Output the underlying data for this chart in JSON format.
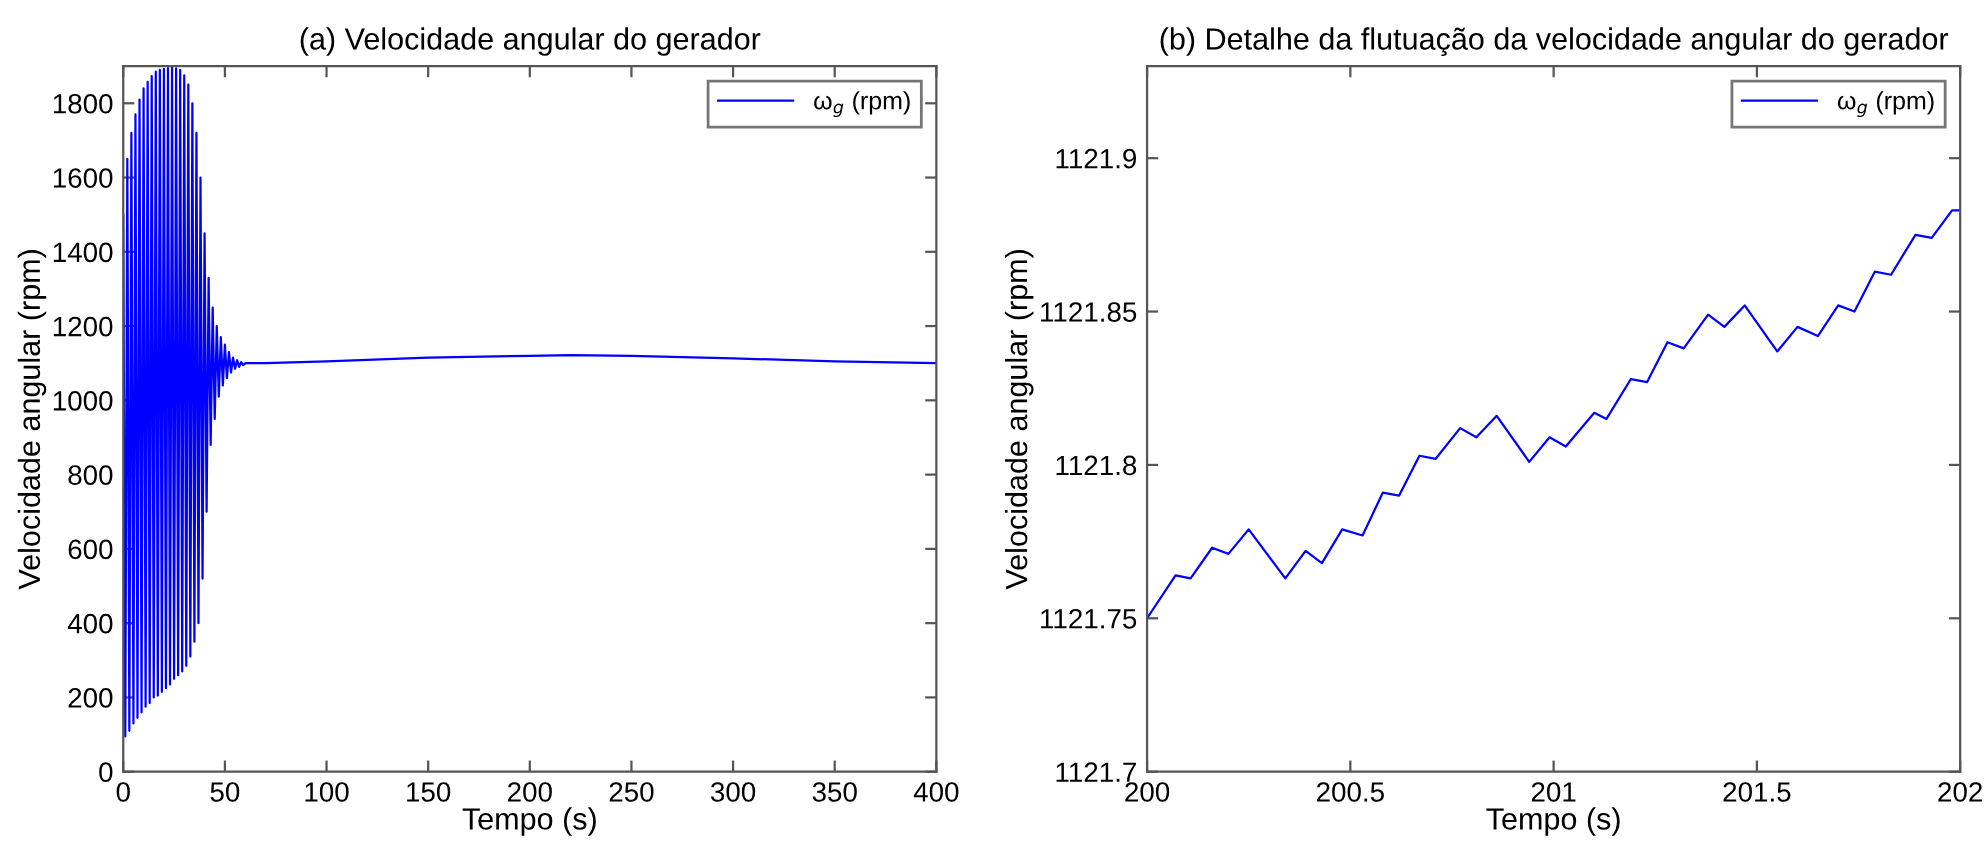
{
  "chart_data": [
    {
      "type": "line",
      "title": "(a) Velocidade angular do gerador",
      "xlabel": "Tempo (s)",
      "ylabel": "Velocidade angular (rpm)",
      "legend": "top right",
      "grid": false,
      "xlim": [
        0,
        400
      ],
      "xticks": [
        0,
        50,
        100,
        150,
        200,
        250,
        300,
        350,
        400
      ],
      "ylim": [
        0,
        1900
      ],
      "yticks": [
        0,
        200,
        400,
        600,
        800,
        1000,
        1200,
        1400,
        1600,
        1800
      ],
      "series": [
        {
          "name": "ω$_{g}$ (rpm)",
          "color": "#0000ff",
          "x": [
            0,
            1,
            2,
            3,
            4,
            5,
            6,
            7,
            8,
            9,
            10,
            11,
            12,
            13,
            14,
            15,
            16,
            17,
            18,
            19,
            20,
            21,
            22,
            23,
            24,
            25,
            26,
            27,
            28,
            29,
            30,
            31,
            32,
            33,
            34,
            35,
            36,
            37,
            38,
            39,
            40,
            41,
            42,
            43,
            44,
            45,
            46,
            47,
            48,
            49,
            50,
            51,
            52,
            53,
            54,
            55,
            56,
            57,
            58,
            59,
            60,
            70,
            100,
            150,
            200,
            220,
            250,
            300,
            350,
            400
          ],
          "values": [
            1500,
            95,
            1650,
            110,
            1720,
            130,
            1770,
            145,
            1810,
            160,
            1840,
            175,
            1858,
            185,
            1873,
            200,
            1885,
            205,
            1890,
            215,
            1893,
            225,
            1895,
            235,
            1896,
            250,
            1894,
            260,
            1890,
            270,
            1875,
            285,
            1850,
            310,
            1800,
            350,
            1720,
            400,
            1600,
            520,
            1450,
            700,
            1330,
            880,
            1250,
            950,
            1200,
            1010,
            1170,
            1040,
            1150,
            1060,
            1130,
            1075,
            1115,
            1085,
            1108,
            1090,
            1103,
            1095,
            1100,
            1100,
            1105,
            1115,
            1120,
            1122,
            1120,
            1113,
            1105,
            1100
          ]
        }
      ]
    },
    {
      "type": "line",
      "title": "(b) Detalhe da flutuação da velocidade angular do gerador",
      "xlabel": "Tempo (s)",
      "ylabel": "Velocidade angular (rpm)",
      "legend": "top right",
      "grid": false,
      "xlim": [
        200,
        202
      ],
      "xticks": [
        200,
        200.5,
        201,
        201.5,
        202
      ],
      "ylim": [
        1121.7,
        1121.93
      ],
      "yticks": [
        1121.7,
        1121.75,
        1121.8,
        1121.85,
        1121.9
      ],
      "series": [
        {
          "name": "ω$_{g}$ (rpm)",
          "color": "#0000ff",
          "x": [
            200,
            200.07,
            200.107,
            200.16,
            200.2,
            200.25,
            200.34,
            200.39,
            200.43,
            200.48,
            200.53,
            200.58,
            200.62,
            200.67,
            200.71,
            200.77,
            200.81,
            200.86,
            200.94,
            200.99,
            201.03,
            201.1,
            201.13,
            201.19,
            201.23,
            201.28,
            201.32,
            201.38,
            201.42,
            201.47,
            201.55,
            201.6,
            201.65,
            201.7,
            201.74,
            201.79,
            201.83,
            201.89,
            201.93,
            201.98,
            202
          ],
          "values": [
            1121.75,
            1121.764,
            1121.763,
            1121.773,
            1121.771,
            1121.779,
            1121.763,
            1121.772,
            1121.768,
            1121.779,
            1121.777,
            1121.791,
            1121.79,
            1121.803,
            1121.802,
            1121.812,
            1121.809,
            1121.816,
            1121.801,
            1121.809,
            1121.806,
            1121.817,
            1121.815,
            1121.828,
            1121.827,
            1121.84,
            1121.838,
            1121.849,
            1121.845,
            1121.852,
            1121.837,
            1121.845,
            1121.842,
            1121.852,
            1121.85,
            1121.863,
            1121.862,
            1121.875,
            1121.874,
            1121.883,
            1121.883
          ]
        }
      ]
    }
  ]
}
